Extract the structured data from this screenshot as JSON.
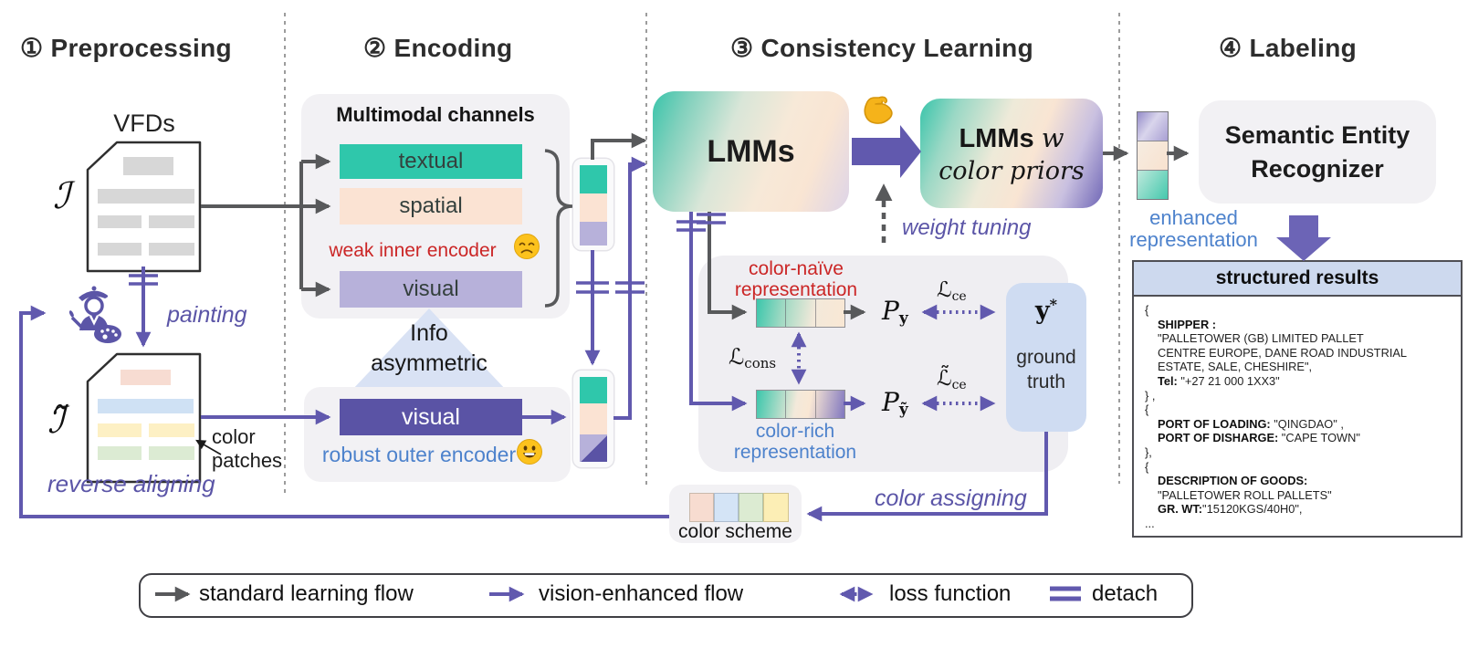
{
  "preprocessing": {
    "title": "① Preprocessing",
    "vfds": "VFDs",
    "doc_symbol": "ℐ",
    "doc_symbol_tilde": "ℐ̃",
    "painting": "painting",
    "color_patches_line1": "color",
    "color_patches_line2": "patches",
    "reverse_aligning": "reverse aligning"
  },
  "encoding": {
    "title": "② Encoding",
    "channels_title": "Multimodal channels",
    "textual": "textual",
    "spatial": "spatial",
    "visual_inner": "visual",
    "weak_encoder": "weak inner encoder",
    "info_line1": "Info",
    "info_line2": "asymmetric",
    "visual_outer": "visual",
    "robust_encoder": "robust outer encoder"
  },
  "consistency": {
    "title": "③ Consistency Learning",
    "lmms": "LMMs",
    "lmms_w_main": "LMMs",
    "lmms_w_var": "w",
    "color_priors": "color priors",
    "weight_tuning": "weight tuning",
    "naive_line1": "color-naïve",
    "naive_line2": "representation",
    "rich_line1": "color-rich",
    "rich_line2": "representation",
    "l_cons_main": "ℒ",
    "l_cons_sub": "cons",
    "p_main": "P",
    "p_sub_y": "y",
    "p_sub_yt": "ỹ",
    "l_ce_main": "ℒ",
    "l_ce_sub": "ce",
    "l_ce_t_main": "ℒ̃",
    "l_ce_t_sub": "ce",
    "y_star_main": "y",
    "y_star_sup": "*",
    "ground_line1": "ground",
    "ground_line2": "truth",
    "color_assigning": "color assigning",
    "color_scheme": "color scheme"
  },
  "labeling": {
    "title": "④ Labeling",
    "enhanced_line1": "enhanced",
    "enhanced_line2": "representation",
    "recognizer_line1": "Semantic Entity",
    "recognizer_line2": "Recognizer",
    "structured_title": "structured results",
    "result_lines": [
      {
        "ind": 0,
        "seg": [
          {
            "t": "{",
            "b": false
          }
        ]
      },
      {
        "ind": 1,
        "seg": [
          {
            "t": "SHIPPER :",
            "b": true
          }
        ]
      },
      {
        "ind": 1,
        "seg": [
          {
            "t": "\"PALLETOWER (GB) LIMITED PALLET",
            "b": false
          }
        ]
      },
      {
        "ind": 1,
        "seg": [
          {
            "t": "CENTRE EUROPE, DANE ROAD INDUSTRIAL",
            "b": false
          }
        ]
      },
      {
        "ind": 1,
        "seg": [
          {
            "t": "ESTATE, SALE, CHESHIRE\",",
            "b": false
          }
        ]
      },
      {
        "ind": 1,
        "seg": [
          {
            "t": "Tel:",
            "b": true
          },
          {
            "t": " \"+27 21 000 1XX3\"",
            "b": false
          }
        ]
      },
      {
        "ind": 0,
        "seg": [
          {
            "t": "} ,",
            "b": false
          }
        ]
      },
      {
        "ind": 0,
        "seg": [
          {
            "t": "{",
            "b": false
          }
        ]
      },
      {
        "ind": 1,
        "seg": [
          {
            "t": "PORT OF LOADING:",
            "b": true
          },
          {
            "t": " \"QINGDAO\" ,",
            "b": false
          }
        ]
      },
      {
        "ind": 1,
        "seg": [
          {
            "t": "PORT OF DISHARGE:",
            "b": true
          },
          {
            "t": " \"CAPE TOWN\"",
            "b": false
          }
        ]
      },
      {
        "ind": 0,
        "seg": [
          {
            "t": "},",
            "b": false
          }
        ]
      },
      {
        "ind": 0,
        "seg": [
          {
            "t": "{",
            "b": false
          }
        ]
      },
      {
        "ind": 1,
        "seg": [
          {
            "t": "DESCRIPTION OF GOODS:",
            "b": true
          }
        ]
      },
      {
        "ind": 1,
        "seg": [
          {
            "t": "\"PALLETOWER ROLL PALLETS\"",
            "b": false
          }
        ]
      },
      {
        "ind": 1,
        "seg": [
          {
            "t": "GR. WT:",
            "b": true
          },
          {
            "t": "\"15120KGS/40H0\",",
            "b": false
          }
        ]
      },
      {
        "ind": 0,
        "seg": [
          {
            "t": "...",
            "b": false
          }
        ]
      }
    ]
  },
  "legend": {
    "standard": "standard learning flow",
    "vision": "vision-enhanced flow",
    "loss": "loss function",
    "detach": "detach"
  },
  "icons": {
    "painter": "painter-palette-icon",
    "weak_face": "sad-face-icon",
    "robust_face": "grinning-face-icon",
    "strength": "flexed-biceps-icon"
  },
  "colors": {
    "teal": "#2fc7ab",
    "peach": "#fbe3d3",
    "lavender": "#b7b1da",
    "deep_purple": "#5a53a5",
    "flow_purple": "#6159ae",
    "flow_gray": "#58595b",
    "panel_gray": "#f2f1f4",
    "inner_panel": "#efeef2",
    "light_blue_box": "#cfdcf2",
    "struct_header": "#cdd9ee",
    "triangle_blue": "#d9e2f4",
    "doc_bar_gray": "#d7d7d7",
    "patch_peach": "#f7dcd2",
    "patch_blue": "#cfe1f4",
    "patch_yellow": "#fdf0c4",
    "patch_green": "#dcebd3",
    "swatch_peach": "#f7dcd0",
    "swatch_blue": "#d4e4f6",
    "swatch_green": "#dcebd2",
    "swatch_yellow": "#fceeb5",
    "grad_lmms": "linear-gradient(112deg,#38c4aa 0%,#7fd0bc 15%,#d9e6d8 38%,#f7e9d8 60%,#f9e5d3 78%,#ddd4e8 100%)",
    "grad_lmms_priors": "linear-gradient(112deg,#38c4aa 0%,#9bd8c5 18%,#eeead9 42%,#f9e5d3 60%,#c9c0e0 80%,#6f66b6 100%)",
    "grad_naive": "linear-gradient(100deg,#3bc6ab,#9fd9c3 30%,#f3e9da 65%,#f9e7d4 100%)",
    "grad_rich": "linear-gradient(100deg,#3bc6ab,#f3e9da 45%,#f9e7d4 60%,#8077bf 100%)",
    "grad_enh_top": "linear-gradient(125deg,#948bc9 0%,#d9d5ec 45%,#a89fd3 100%)",
    "grad_enh_mid": "linear-gradient(125deg,#f6ece1,#f8e2cf)",
    "grad_enh_bot": "linear-gradient(125deg,#bfe9dc,#45c8ad)",
    "grad_diag_split": "linear-gradient(135deg,#b7b1da 0 52%,#5a53a5 52%)"
  }
}
